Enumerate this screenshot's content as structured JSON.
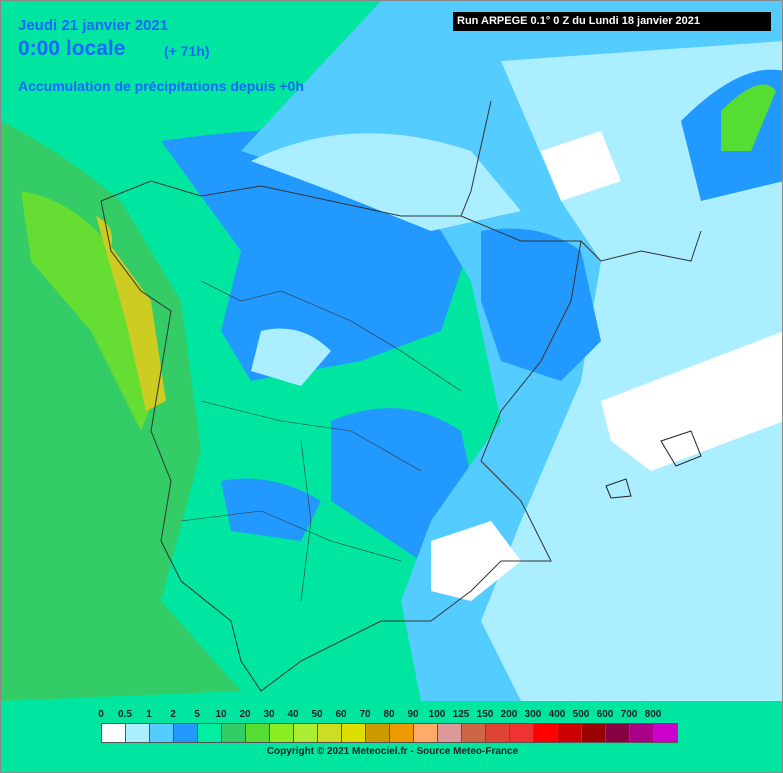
{
  "header": {
    "date": "Jeudi 21 janvier 2021",
    "time": "0:00 locale",
    "offset": "(+ 71h)",
    "subtitle": "Accumulation de précipitations depuis +0h"
  },
  "run": "Run ARPEGE 0.1° 0 Z du Lundi 18 janvier 2021",
  "legend": {
    "labels": [
      0,
      0.5,
      1,
      2,
      5,
      10,
      20,
      30,
      40,
      50,
      60,
      70,
      80,
      90,
      100,
      125,
      150,
      200,
      300,
      400,
      500,
      600,
      700,
      800
    ],
    "colors": [
      "#ffffff",
      "#aaeeff",
      "#55ccff",
      "#2299ff",
      "#00eea0",
      "#33cc66",
      "#55dd33",
      "#88ee22",
      "#aaee33",
      "#ccdd22",
      "#dddd00",
      "#cc9900",
      "#ee9900",
      "#ffaa66",
      "#dd9999",
      "#cc6644",
      "#dd4433",
      "#ee3333",
      "#ff0000",
      "#cc0000",
      "#990000",
      "#880044",
      "#aa0088",
      "#cc00cc"
    ]
  },
  "copyright": "Copyright © 2021 Meteociel.fr - Source Meteo-France"
}
